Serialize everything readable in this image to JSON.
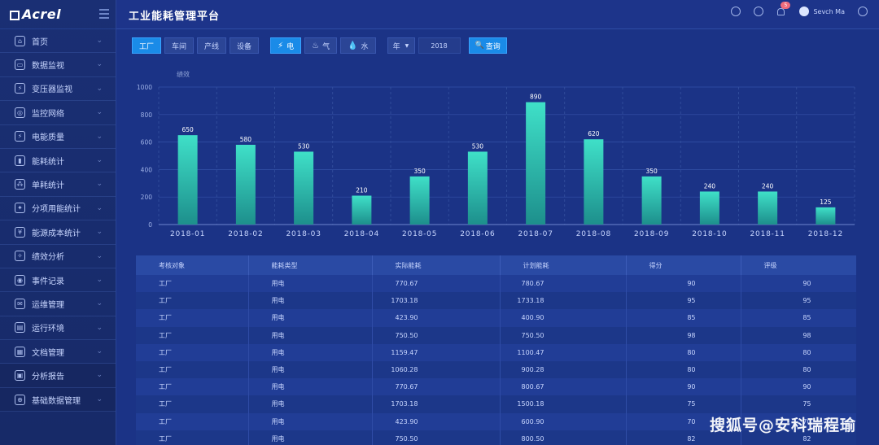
{
  "brand": {
    "logo_text": "Acrel"
  },
  "sidebar": {
    "items": [
      {
        "label": "首页",
        "icon": "home-icon"
      },
      {
        "label": "数据监视",
        "icon": "monitor-icon"
      },
      {
        "label": "变压器监视",
        "icon": "transformer-icon"
      },
      {
        "label": "监控网络",
        "icon": "network-icon"
      },
      {
        "label": "电能质量",
        "icon": "power-quality-icon"
      },
      {
        "label": "能耗统计",
        "icon": "bar-chart-icon"
      },
      {
        "label": "单耗统计",
        "icon": "nodes-icon"
      },
      {
        "label": "分项用能统计",
        "icon": "bulb-icon"
      },
      {
        "label": "能源成本统计",
        "icon": "yen-icon"
      },
      {
        "label": "绩效分析",
        "icon": "performance-icon"
      },
      {
        "label": "事件记录",
        "icon": "event-icon"
      },
      {
        "label": "运维管理",
        "icon": "maintenance-icon"
      },
      {
        "label": "运行环境",
        "icon": "environment-icon"
      },
      {
        "label": "文档管理",
        "icon": "document-icon"
      },
      {
        "label": "分析报告",
        "icon": "report-icon"
      },
      {
        "label": "基础数据管理",
        "icon": "database-icon"
      }
    ]
  },
  "header": {
    "title": "工业能耗管理平台",
    "badge": "5",
    "user": "Sevch Ma"
  },
  "filters": {
    "scope_tabs": [
      "工厂",
      "车间",
      "产线",
      "设备"
    ],
    "energy_tabs": [
      {
        "label": "电",
        "icon": "lightning-icon"
      },
      {
        "label": "气",
        "icon": "flame-icon"
      },
      {
        "label": "水",
        "icon": "water-drop-icon"
      }
    ],
    "period_select": "年",
    "year": "2018",
    "query_label": "查询"
  },
  "chart_data": {
    "type": "bar",
    "ylabel": "绩效",
    "categories": [
      "2018-01",
      "2018-02",
      "2018-03",
      "2018-04",
      "2018-05",
      "2018-06",
      "2018-07",
      "2018-08",
      "2018-09",
      "2018-10",
      "2018-11",
      "2018-12"
    ],
    "values": [
      650,
      580,
      530,
      210,
      350,
      530,
      890,
      620,
      350,
      240,
      240,
      125
    ],
    "ylim": [
      0,
      1000
    ],
    "yticks": [
      0,
      200,
      400,
      600,
      800,
      1000
    ],
    "grid": true,
    "bar_color": "#2fc9b4"
  },
  "table": {
    "headers": [
      "考核对象",
      "能耗类型",
      "实际能耗",
      "计划能耗",
      "得分",
      "评级"
    ],
    "rows": [
      [
        "工厂",
        "用电",
        "770.67",
        "780.67",
        "90",
        "90"
      ],
      [
        "工厂",
        "用电",
        "1703.18",
        "1733.18",
        "95",
        "95"
      ],
      [
        "工厂",
        "用电",
        "423.90",
        "400.90",
        "85",
        "85"
      ],
      [
        "工厂",
        "用电",
        "750.50",
        "750.50",
        "98",
        "98"
      ],
      [
        "工厂",
        "用电",
        "1159.47",
        "1100.47",
        "80",
        "80"
      ],
      [
        "工厂",
        "用电",
        "1060.28",
        "900.28",
        "80",
        "80"
      ],
      [
        "工厂",
        "用电",
        "770.67",
        "800.67",
        "90",
        "90"
      ],
      [
        "工厂",
        "用电",
        "1703.18",
        "1500.18",
        "75",
        "75"
      ],
      [
        "工厂",
        "用电",
        "423.90",
        "600.90",
        "70",
        "70"
      ],
      [
        "工厂",
        "用电",
        "750.50",
        "800.50",
        "82",
        "82"
      ]
    ]
  },
  "watermark": "搜狐号@安科瑞程瑜",
  "colors": {
    "accent": "#1a8be8",
    "bar": "#2fc9b4",
    "background": "#1b3386"
  }
}
